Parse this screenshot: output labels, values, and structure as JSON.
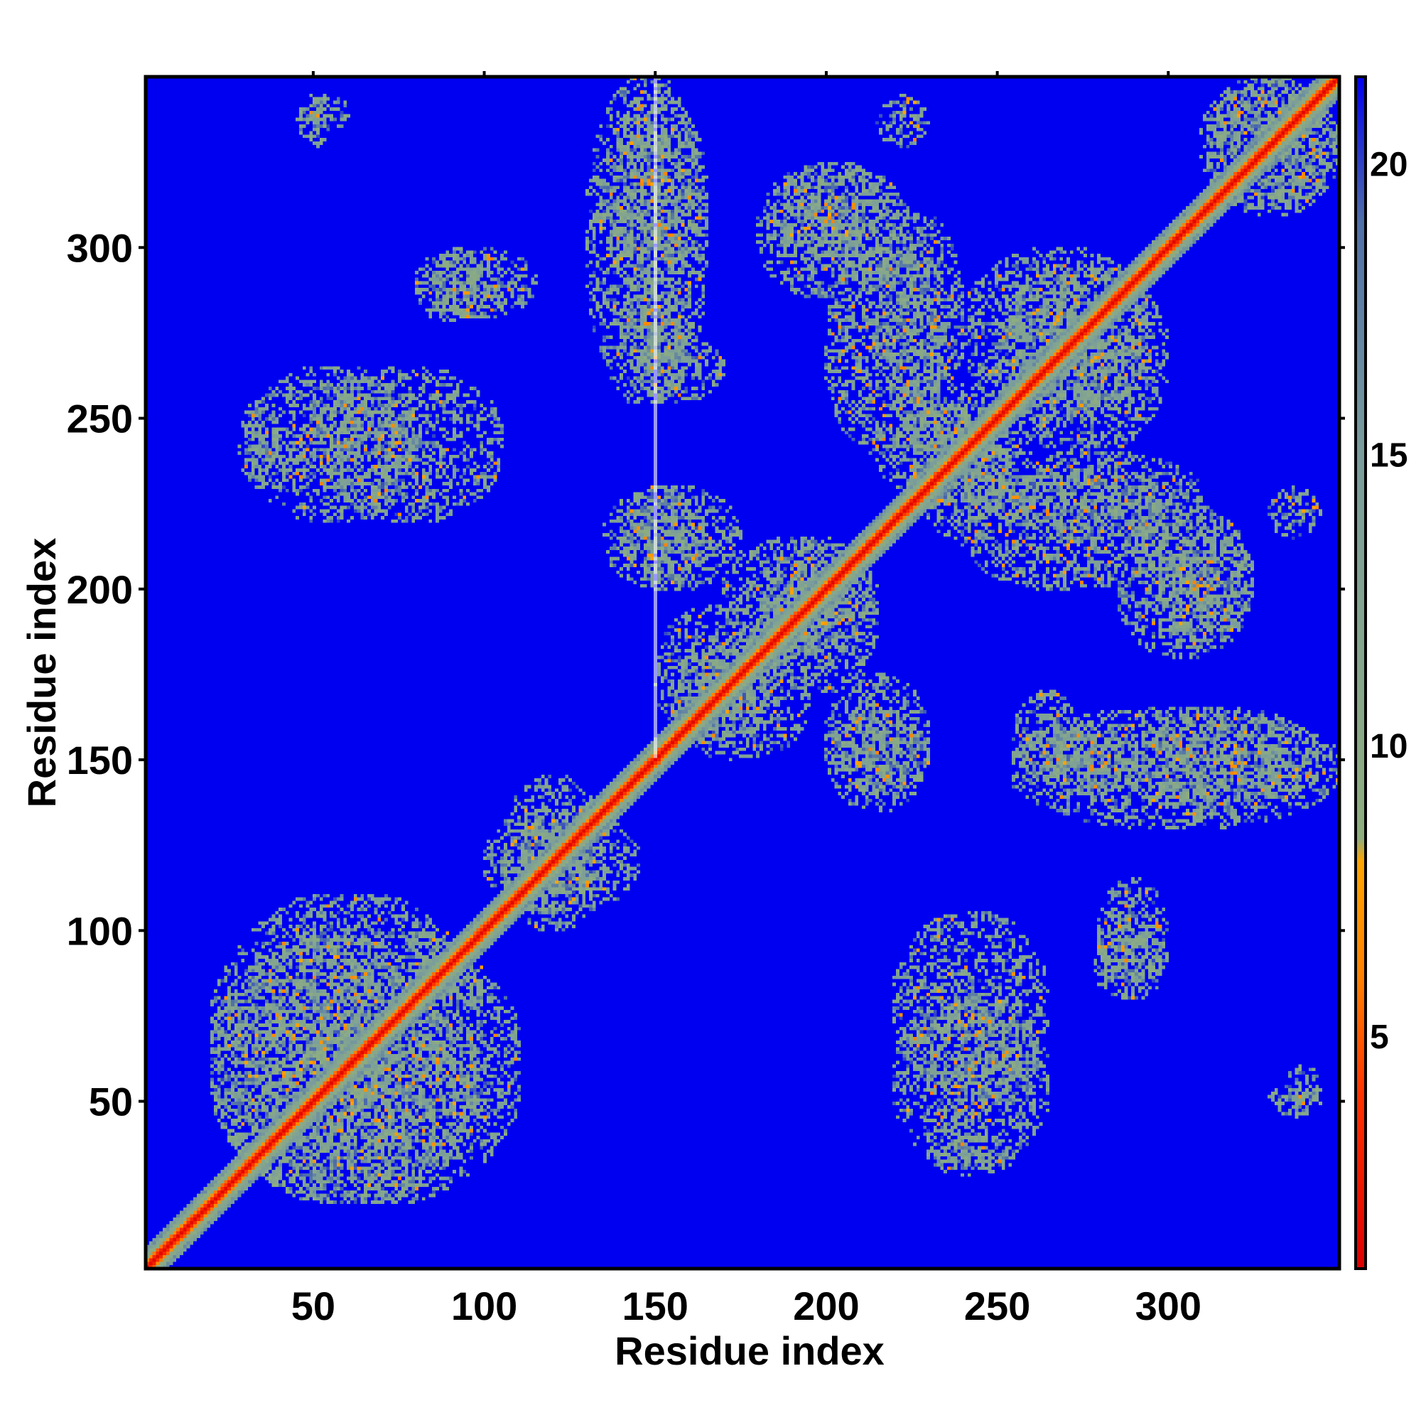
{
  "chart_data": {
    "type": "heatmap",
    "title": "",
    "xlabel": "Residue index",
    "ylabel": "Residue index",
    "xlim": [
      1,
      350
    ],
    "ylim": [
      1,
      350
    ],
    "x_ticks": [
      50,
      100,
      150,
      200,
      250,
      300
    ],
    "y_ticks": [
      50,
      100,
      150,
      200,
      250,
      300
    ],
    "colorbar": {
      "ticks": [
        5,
        10,
        15,
        20
      ],
      "range": [
        1,
        21.5
      ],
      "stops": [
        {
          "value": 1,
          "color": "#dd0000"
        },
        {
          "value": 4,
          "color": "#ff3300"
        },
        {
          "value": 6,
          "color": "#ff8000"
        },
        {
          "value": 8,
          "color": "#ffa500"
        },
        {
          "value": 8.4,
          "color": "#8fae7e"
        },
        {
          "value": 15,
          "color": "#7a9d9c"
        },
        {
          "value": 19,
          "color": "#4f6fa8"
        },
        {
          "value": 21.5,
          "color": "#0000f0"
        }
      ]
    },
    "background_color": "#0000f0",
    "gap_column_x": 150,
    "diagonal_band_width": 4,
    "contact_regions": [
      {
        "x": [
          30,
          80
        ],
        "y": [
          220,
          265
        ]
      },
      {
        "x": [
          80,
          115
        ],
        "y": [
          280,
          300
        ]
      },
      {
        "x": [
          48,
          60
        ],
        "y": [
          335,
          345
        ]
      },
      {
        "x": [
          20,
          110
        ],
        "y": [
          20,
          100
        ]
      },
      {
        "x": [
          100,
          145
        ],
        "y": [
          105,
          135
        ]
      },
      {
        "x": [
          135,
          165
        ],
        "y": [
          285,
          345
        ]
      },
      {
        "x": [
          145,
          170
        ],
        "y": [
          255,
          275
        ]
      },
      {
        "x": [
          135,
          175
        ],
        "y": [
          200,
          230
        ]
      },
      {
        "x": [
          150,
          185
        ],
        "y": [
          155,
          195
        ]
      },
      {
        "x": [
          180,
          215
        ],
        "y": [
          170,
          215
        ]
      },
      {
        "x": [
          180,
          225
        ],
        "y": [
          285,
          325
        ]
      },
      {
        "x": [
          200,
          235
        ],
        "y": [
          240,
          300
        ]
      },
      {
        "x": [
          200,
          230
        ],
        "y": [
          140,
          165
        ]
      },
      {
        "x": [
          215,
          260
        ],
        "y": [
          225,
          255
        ]
      },
      {
        "x": [
          250,
          300
        ],
        "y": [
          240,
          295
        ]
      },
      {
        "x": [
          250,
          310
        ],
        "y": [
          215,
          240
        ]
      },
      {
        "x": [
          295,
          325
        ],
        "y": [
          185,
          220
        ]
      },
      {
        "x": [
          255,
          350
        ],
        "y": [
          130,
          165
        ]
      },
      {
        "x": [
          220,
          265
        ],
        "y": [
          50,
          105
        ]
      },
      {
        "x": [
          230,
          255
        ],
        "y": [
          28,
          40
        ]
      },
      {
        "x": [
          278,
          300
        ],
        "y": [
          80,
          100
        ]
      },
      {
        "x": [
          265,
          290
        ],
        "y": [
          140,
          160
        ]
      },
      {
        "x": [
          312,
          350
        ],
        "y": [
          310,
          350
        ]
      },
      {
        "x": [
          330,
          345
        ],
        "y": [
          45,
          55
        ]
      },
      {
        "x": [
          330,
          345
        ],
        "y": [
          215,
          230
        ]
      }
    ]
  }
}
